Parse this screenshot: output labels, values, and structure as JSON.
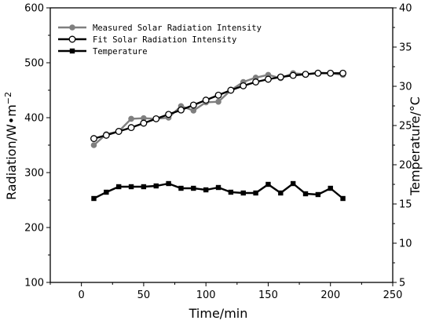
{
  "chart_data": {
    "type": "line",
    "xlabel": "Time/min",
    "ylabel_left": "Radiation/W•m",
    "ylabel_left_sup": "−2",
    "ylabel_right": "Temperature/°C",
    "xlim": [
      -25,
      250
    ],
    "xticks": [
      "0",
      "50",
      "100",
      "150",
      "200",
      "250"
    ],
    "ylim_left": [
      100,
      600
    ],
    "yticks_left": [
      "100",
      "200",
      "300",
      "400",
      "500",
      "600"
    ],
    "ylim_right": [
      5,
      40
    ],
    "yticks_right": [
      "5",
      "10",
      "15",
      "20",
      "25",
      "30",
      "35",
      "40"
    ],
    "legend_position": "top-left",
    "x": [
      10,
      20,
      30,
      40,
      50,
      60,
      70,
      80,
      90,
      100,
      110,
      120,
      130,
      140,
      150,
      160,
      170,
      180,
      190,
      200,
      210
    ],
    "series": [
      {
        "name": "Measured Solar Radiation Intensity",
        "axis": "left",
        "color": "#7f7f7f",
        "marker": "filled-circle",
        "values": [
          350,
          370,
          375,
          398,
          399,
          398,
          400,
          421,
          413,
          428,
          429,
          450,
          465,
          473,
          478,
          472,
          481,
          479,
          482,
          481,
          478
        ]
      },
      {
        "name": "Fit Solar Radiation Intensity",
        "axis": "left",
        "color": "#000000",
        "marker": "open-circle",
        "values": [
          362,
          368,
          375,
          382,
          390,
          398,
          406,
          414,
          423,
          432,
          441,
          450,
          458,
          465,
          470,
          474,
          477,
          479,
          481,
          481,
          481
        ]
      },
      {
        "name": "Temperature",
        "axis": "right",
        "color": "#000000",
        "marker": "filled-square",
        "values": [
          15.7,
          16.5,
          17.2,
          17.2,
          17.2,
          17.3,
          17.6,
          17.0,
          17.0,
          16.8,
          17.1,
          16.5,
          16.4,
          16.4,
          17.5,
          16.4,
          17.6,
          16.3,
          16.2,
          17.0,
          15.7
        ]
      }
    ]
  }
}
